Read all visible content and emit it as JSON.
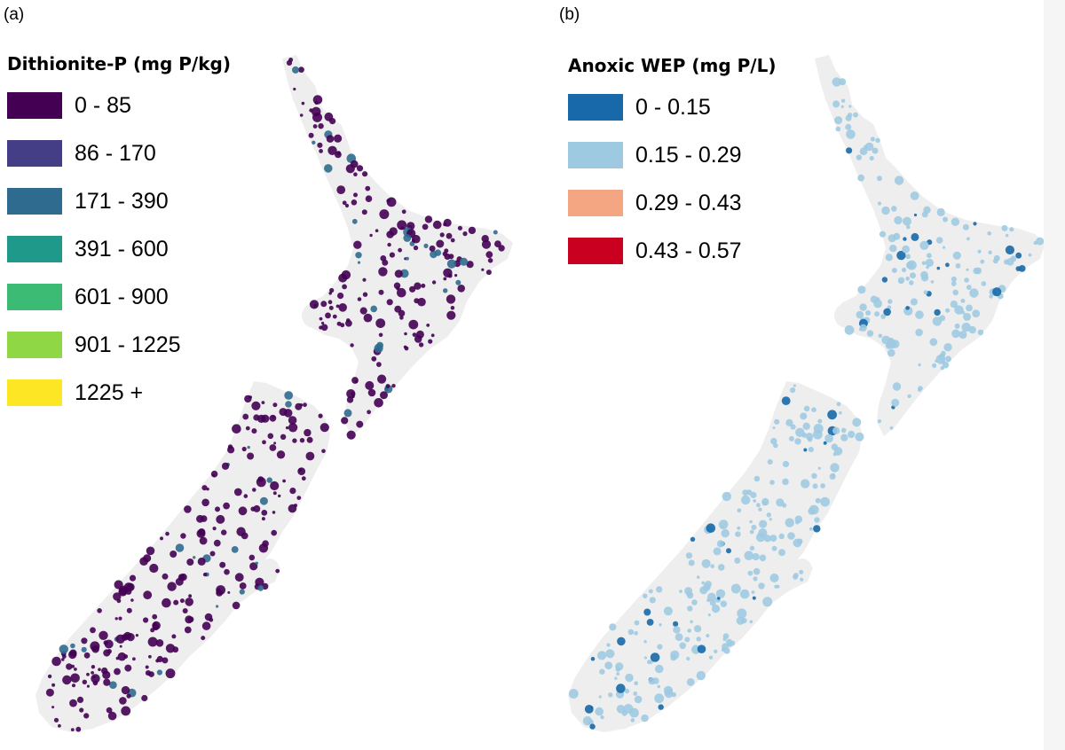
{
  "panels": [
    {
      "label": "(a)",
      "legend_title": "Dithionite-P (mg P/kg)",
      "base_color": "#440154",
      "legend": [
        {
          "label": "0 - 85",
          "color": "#440154"
        },
        {
          "label": "86 - 170",
          "color": "#433e85"
        },
        {
          "label": "171 - 390",
          "color": "#2f6b8e"
        },
        {
          "label": "391 - 600",
          "color": "#1f9a8a"
        },
        {
          "label": "601 - 900",
          "color": "#3cbb75"
        },
        {
          "label": "901 - 1225",
          "color": "#8fd744"
        },
        {
          "label": "1225 +",
          "color": "#fde725"
        }
      ],
      "accent_color": "#2f6b8e"
    },
    {
      "label": "(b)",
      "legend_title": "Anoxic WEP (mg P/L)",
      "base_color": "#9ecae1",
      "legend": [
        {
          "label": "0 - 0.15",
          "color": "#1769aa"
        },
        {
          "label": "0.15 - 0.29",
          "color": "#9ecae1"
        },
        {
          "label": "0.29 - 0.43",
          "color": "#f4a582"
        },
        {
          "label": "0.43 - 0.57",
          "color": "#ca0020"
        }
      ],
      "accent_color": "#1769aa"
    }
  ],
  "land_color": "#eeeeee"
}
